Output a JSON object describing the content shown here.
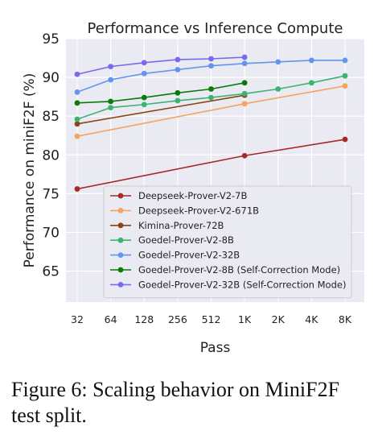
{
  "chart_data": {
    "type": "line",
    "title": "Performance vs Inference Compute",
    "xlabel": "Pass",
    "ylabel": "Performance on miniF2F (%)",
    "categories": [
      "32",
      "64",
      "128",
      "256",
      "512",
      "1K",
      "2K",
      "4K",
      "8K"
    ],
    "ylim": [
      61,
      95
    ],
    "yticks": [
      65,
      70,
      75,
      80,
      85,
      90,
      95
    ],
    "grid": true,
    "legend_position": "bottom-right",
    "series": [
      {
        "name": "Deepseek-Prover-V2-7B",
        "color": "#a52a2a",
        "points": [
          [
            0,
            75.6
          ],
          [
            5,
            79.9
          ],
          [
            8,
            82.0
          ]
        ]
      },
      {
        "name": "Deepseek-Prover-V2-671B",
        "color": "#f4a460",
        "points": [
          [
            0,
            82.4
          ],
          [
            5,
            86.6
          ],
          [
            8,
            88.9
          ]
        ]
      },
      {
        "name": "Kimina-Prover-72B",
        "color": "#8b4513",
        "points": [
          [
            0,
            84.0
          ],
          [
            5,
            87.7
          ]
        ]
      },
      {
        "name": "Goedel-Prover-V2-8B",
        "color": "#3cb371",
        "points": [
          [
            0,
            84.6
          ],
          [
            1,
            86.1
          ],
          [
            2,
            86.5
          ],
          [
            3,
            87.0
          ],
          [
            4,
            87.4
          ],
          [
            5,
            87.9
          ],
          [
            6,
            88.5
          ],
          [
            7,
            89.3
          ],
          [
            8,
            90.2
          ]
        ]
      },
      {
        "name": "Goedel-Prover-V2-32B",
        "color": "#6495ed",
        "points": [
          [
            0,
            88.1
          ],
          [
            1,
            89.7
          ],
          [
            2,
            90.5
          ],
          [
            3,
            91.0
          ],
          [
            4,
            91.5
          ],
          [
            5,
            91.8
          ],
          [
            6,
            92.0
          ],
          [
            7,
            92.2
          ],
          [
            8,
            92.2
          ]
        ]
      },
      {
        "name": "Goedel-Prover-V2-8B (Self-Correction Mode)",
        "color": "#0a7a0a",
        "points": [
          [
            0,
            86.7
          ],
          [
            1,
            86.9
          ],
          [
            2,
            87.4
          ],
          [
            3,
            88.0
          ],
          [
            4,
            88.5
          ],
          [
            5,
            89.3
          ]
        ]
      },
      {
        "name": "Goedel-Prover-V2-32B (Self-Correction Mode)",
        "color": "#7b68ee",
        "points": [
          [
            0,
            90.4
          ],
          [
            1,
            91.4
          ],
          [
            2,
            91.9
          ],
          [
            3,
            92.3
          ],
          [
            4,
            92.4
          ],
          [
            5,
            92.6
          ]
        ]
      }
    ]
  },
  "caption": "Figure 6: Scaling behavior on MiniF2F test split."
}
